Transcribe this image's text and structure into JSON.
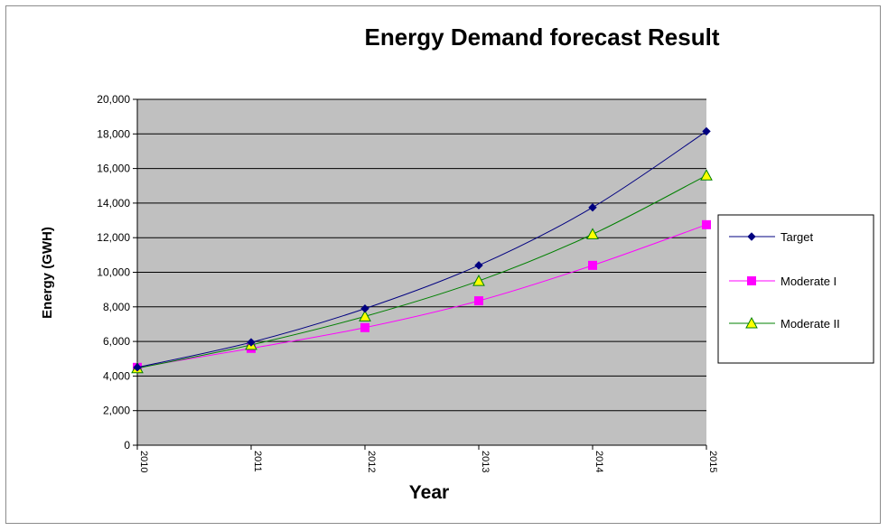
{
  "chart_data": {
    "type": "line",
    "title": "Energy Demand forecast Result",
    "xlabel": "Year",
    "ylabel": "Energy (GWH)",
    "categories": [
      "2010",
      "2011",
      "2012",
      "2013",
      "2014",
      "2015"
    ],
    "ylim": [
      0,
      20000
    ],
    "yticks": [
      "0",
      "2,000",
      "4,000",
      "6,000",
      "8,000",
      "10,000",
      "12,000",
      "14,000",
      "16,000",
      "18,000",
      "20,000"
    ],
    "ytick_values": [
      0,
      2000,
      4000,
      6000,
      8000,
      10000,
      12000,
      14000,
      16000,
      18000,
      20000
    ],
    "grid": true,
    "plot_background": "#c0c0c0",
    "legend_position": "right",
    "series": [
      {
        "name": "Target",
        "values": [
          4500,
          5950,
          7900,
          10400,
          13750,
          18150
        ],
        "color": "#000080",
        "marker": "diamond",
        "marker_color": "#000080"
      },
      {
        "name": "Moderate I",
        "values": [
          4500,
          5600,
          6800,
          8350,
          10400,
          12750
        ],
        "color": "#ff00ff",
        "marker": "square",
        "marker_color": "#ff00ff"
      },
      {
        "name": "Moderate II",
        "values": [
          4450,
          5800,
          7450,
          9500,
          12200,
          15600
        ],
        "color": "#008000",
        "marker": "triangle",
        "marker_color": "#ffff00"
      }
    ]
  }
}
